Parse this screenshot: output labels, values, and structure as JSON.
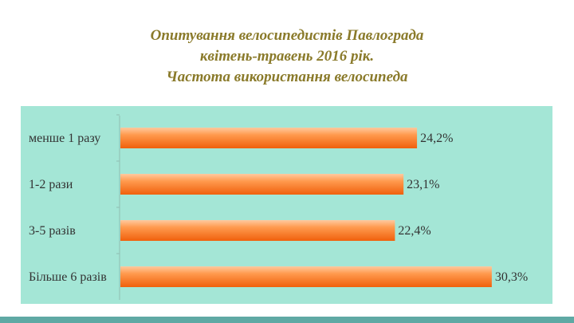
{
  "title": {
    "line1": "Опитування велосипедистів Павлограда",
    "line2": "квітень-травень 2016 рік.",
    "line3": "Частота використання велосипеда"
  },
  "colors": {
    "panel": "#a4e6d6",
    "bar_light": "#ffb27a",
    "bar_dark": "#f26a12",
    "title": "#8a7a2a",
    "strip": "#5fa9a4"
  },
  "chart_data": {
    "type": "bar",
    "orientation": "horizontal",
    "title": "Частота використання велосипеда",
    "categories": [
      "менше 1 разу",
      "1-2 рази",
      "3-5 разів",
      "Більше 6 разів"
    ],
    "values": [
      24.2,
      23.1,
      22.4,
      30.3
    ],
    "value_labels": [
      "24,2%",
      "23,1%",
      "22,4%",
      "30,3%"
    ],
    "xlabel": "",
    "ylabel": "",
    "xlim": [
      0,
      32
    ],
    "grid": false,
    "legend": "none"
  }
}
